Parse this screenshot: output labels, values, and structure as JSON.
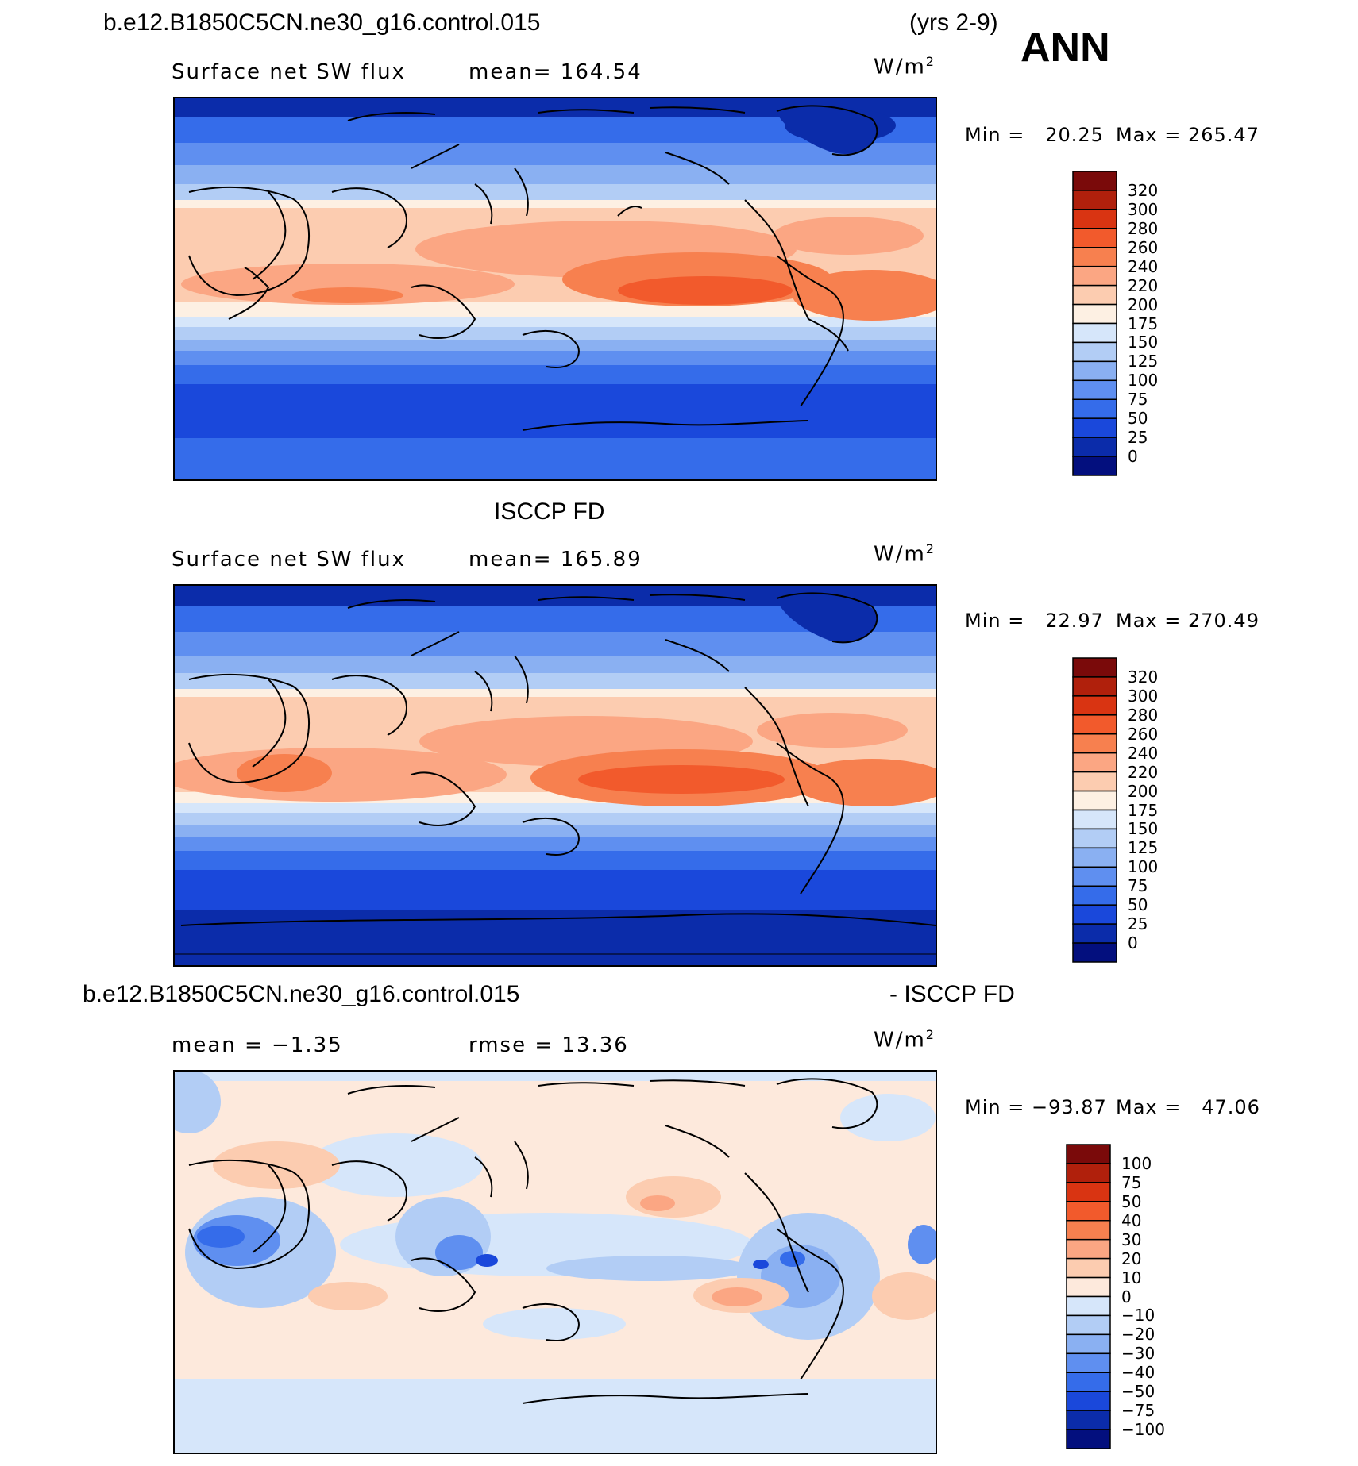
{
  "header": {
    "case_title": "b.e12.B1850C5CN.ne30_g16.control.015",
    "years": "(yrs 2-9)",
    "season": "ANN"
  },
  "panel1": {
    "variable": "Surface net SW flux",
    "mean": "mean= 164.54",
    "units": "W/m",
    "units_exp": "2",
    "min": "Min =   20.25",
    "max": "Max = 265.47",
    "levels": [
      "320",
      "300",
      "280",
      "260",
      "240",
      "220",
      "200",
      "175",
      "150",
      "125",
      "100",
      "75",
      "50",
      "25",
      "0"
    ]
  },
  "panel2": {
    "title": "ISCCP FD",
    "variable": "Surface net SW flux",
    "mean": "mean= 165.89",
    "units": "W/m",
    "units_exp": "2",
    "min": "Min =   22.97",
    "max": "Max = 270.49",
    "levels": [
      "320",
      "300",
      "280",
      "260",
      "240",
      "220",
      "200",
      "175",
      "150",
      "125",
      "100",
      "75",
      "50",
      "25",
      "0"
    ]
  },
  "panel3": {
    "title_left": "b.e12.B1850C5CN.ne30_g16.control.015",
    "title_right": "- ISCCP FD",
    "mean": "mean =  −1.35",
    "rmse": "rmse =   13.36",
    "units": "W/m",
    "units_exp": "2",
    "min": "Min = −93.87",
    "max": "Max =   47.06",
    "levels": [
      "100",
      "75",
      "50",
      "40",
      "30",
      "20",
      "10",
      "0",
      "−10",
      "−20",
      "−30",
      "−40",
      "−50",
      "−75",
      "−100"
    ]
  },
  "colors": {
    "flux_scale": [
      "#7a0a0a",
      "#b0200c",
      "#d93412",
      "#f25a2c",
      "#f7804f",
      "#fba683",
      "#fcccb0",
      "#fdf0e3",
      "#d6e6fa",
      "#b2cdf5",
      "#8ab0f2",
      "#5f8ff0",
      "#356cea",
      "#1a48db",
      "#0b2caa",
      "#030f7e"
    ],
    "diff_scale": [
      "#7a0a0a",
      "#b0200c",
      "#d93412",
      "#f25a2c",
      "#f7804f",
      "#fba683",
      "#fcccb0",
      "#fde9dc",
      "#d6e6fa",
      "#b2cdf5",
      "#8ab0f2",
      "#5f8ff0",
      "#356cea",
      "#1a48db",
      "#0b2caa",
      "#030f7e"
    ]
  }
}
